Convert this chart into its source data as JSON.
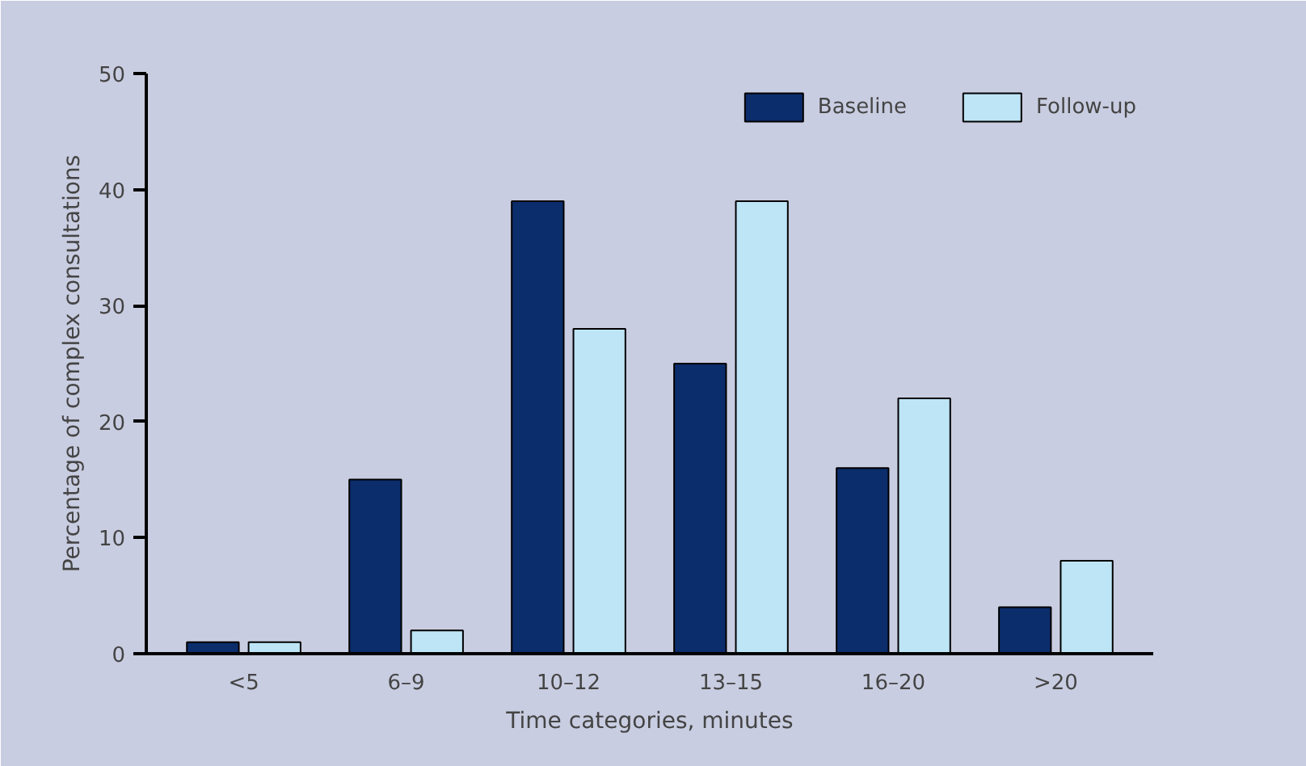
{
  "chart_data": {
    "type": "bar",
    "xlabel": "Time categories, minutes",
    "ylabel": "Percentage of complex consultations",
    "categories": [
      "<5",
      "6–9",
      "10–12",
      "13–15",
      "16–20",
      ">20"
    ],
    "series": [
      {
        "name": "Baseline",
        "color": "#0b2d6b",
        "values": [
          1,
          15,
          39,
          25,
          16,
          4
        ]
      },
      {
        "name": "Follow-up",
        "color": "#bde5f6",
        "values": [
          1,
          2,
          28,
          39,
          22,
          8
        ]
      }
    ],
    "ylim": [
      0,
      50
    ],
    "yticks": [
      0,
      10,
      20,
      30,
      40,
      50
    ],
    "grid": false,
    "legend": "top right"
  }
}
